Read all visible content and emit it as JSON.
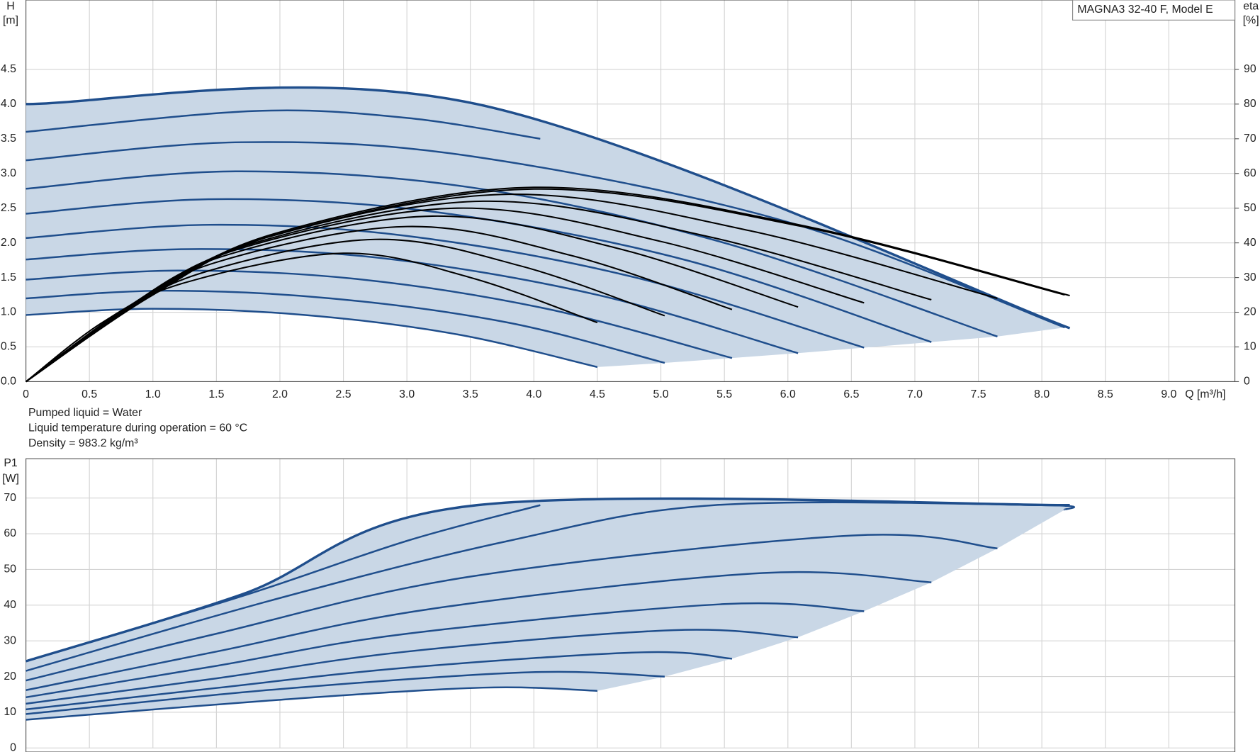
{
  "chart_data": [
    {
      "type": "line",
      "title": "MAGNA3 32-40 F, Model E",
      "ylabel": [
        "H",
        "[m]"
      ],
      "y2label": [
        "eta",
        "[%]"
      ],
      "xlabel": "Q [m³/h]",
      "notes": [
        "Pumped liquid = Water",
        "Liquid temperature during operation = 60 °C",
        "Density = 983.2 kg/m³"
      ],
      "grid": true,
      "shaded": true,
      "fill_color": "#c9d7e6",
      "xlim": [
        0,
        9.52
      ],
      "ylim": [
        0,
        5.5
      ],
      "y2lim": [
        0,
        110
      ],
      "xticks": [
        0,
        0.5,
        {
          "value": 1,
          "label": "1.0"
        },
        1.5,
        {
          "value": 2,
          "label": "2.0"
        },
        2.5,
        {
          "value": 3,
          "label": "3.0"
        },
        3.5,
        {
          "value": 4,
          "label": "4.0"
        },
        4.5,
        {
          "value": 5,
          "label": "5.0"
        },
        5.5,
        {
          "value": 6,
          "label": "6.0"
        },
        6.5,
        {
          "value": 7,
          "label": "7.0"
        },
        7.5,
        {
          "value": 8,
          "label": "8.0"
        },
        8.5,
        {
          "value": 9,
          "label": "9.0"
        }
      ],
      "yticks": [
        {
          "value": 0,
          "label": "0.0"
        },
        0.5,
        {
          "value": 1,
          "label": "1.0"
        },
        1.5,
        {
          "value": 2,
          "label": "2.0"
        },
        2.5,
        {
          "value": 3,
          "label": "3.0"
        },
        3.5,
        {
          "value": 4,
          "label": "4.0"
        },
        4.5
      ],
      "y2ticks": [
        0,
        10,
        20,
        30,
        40,
        50,
        60,
        70,
        80,
        90
      ],
      "series": [
        {
          "color": "#1f4e8c",
          "x": [
            0,
            3.55,
            8.22
          ],
          "values": [
            4,
            4,
            0.77
          ]
        },
        {
          "color": "#1f4e8c",
          "x": [
            0,
            1.8,
            3,
            4.05
          ],
          "values": [
            3.6,
            3.9,
            3.8,
            3.5
          ]
        },
        {
          "color": "#1f4e8c",
          "x": [
            0,
            1.7,
            3.5,
            6,
            8.18
          ],
          "values": [
            3.19,
            3.45,
            3.25,
            2.3,
            0.78
          ]
        },
        {
          "color": "#1f4e8c",
          "x": [
            0,
            1.65,
            3.5,
            5.5,
            7.65
          ],
          "values": [
            2.78,
            3.03,
            2.8,
            2.0,
            0.65
          ]
        },
        {
          "color": "#1f4e8c",
          "x": [
            0,
            1.5,
            3.2,
            5.2,
            7.13
          ],
          "values": [
            2.42,
            2.63,
            2.45,
            1.75,
            0.57
          ]
        },
        {
          "color": "#1f4e8c",
          "x": [
            0,
            1.45,
            3,
            4.8,
            6.6
          ],
          "values": [
            2.07,
            2.26,
            2.1,
            1.5,
            0.49
          ]
        },
        {
          "color": "#1f4e8c",
          "x": [
            0,
            1.3,
            2.8,
            4.5,
            6.08
          ],
          "values": [
            1.76,
            1.91,
            1.78,
            1.25,
            0.41
          ]
        },
        {
          "color": "#1f4e8c",
          "x": [
            0,
            1.2,
            2.6,
            4.1,
            5.56
          ],
          "values": [
            1.47,
            1.6,
            1.48,
            1.05,
            0.34
          ]
        },
        {
          "color": "#1f4e8c",
          "x": [
            0,
            1.1,
            2.4,
            3.8,
            5.03
          ],
          "values": [
            1.2,
            1.31,
            1.2,
            0.85,
            0.27
          ]
        },
        {
          "color": "#1f4e8c",
          "x": [
            0,
            1,
            2.2,
            3.4,
            4.5
          ],
          "values": [
            0.96,
            1.05,
            0.96,
            0.68,
            0.21
          ]
        },
        {
          "color": "#000000",
          "axis": "y2",
          "x": [
            0,
            0.6,
            1.25,
            2.5,
            3.5,
            4.5
          ],
          "values": [
            0,
            17,
            28.5,
            37,
            30,
            17
          ]
        },
        {
          "color": "#000000",
          "axis": "y2",
          "x": [
            0,
            0.7,
            1.4,
            2.75,
            3.9,
            5.03
          ],
          "values": [
            0,
            18.5,
            31.5,
            41,
            33.3,
            19
          ]
        },
        {
          "color": "#000000",
          "axis": "y2",
          "x": [
            0,
            0.75,
            1.5,
            3,
            4.3,
            5.56
          ],
          "values": [
            0,
            20,
            34.4,
            44.7,
            36.3,
            20.8
          ]
        },
        {
          "color": "#000000",
          "axis": "y2",
          "x": [
            0,
            0.8,
            1.6,
            3.2,
            4.65,
            6.08
          ],
          "values": [
            0,
            21.5,
            36.7,
            47.7,
            38.5,
            21.5
          ]
        },
        {
          "color": "#000000",
          "axis": "y2",
          "x": [
            0,
            0.85,
            1.7,
            3.4,
            5,
            6.6
          ],
          "values": [
            0,
            22.5,
            38.5,
            50,
            40.4,
            22.7
          ]
        },
        {
          "color": "#000000",
          "axis": "y2",
          "x": [
            0,
            0.9,
            1.8,
            3.6,
            5.35,
            7.13
          ],
          "values": [
            0,
            23.4,
            40,
            52,
            42,
            23.6
          ]
        },
        {
          "color": "#000000",
          "axis": "y2",
          "x": [
            0,
            0.95,
            1.9,
            3.8,
            5.7,
            7.65
          ],
          "values": [
            0,
            24.3,
            41.6,
            54,
            43.5,
            24
          ]
        },
        {
          "color": "#000000",
          "axis": "y2",
          "x": [
            0,
            1,
            2,
            4,
            6.1,
            8.18
          ],
          "values": [
            0,
            25,
            42.7,
            55.5,
            44.8,
            25
          ]
        },
        {
          "color": "#000000",
          "axis": "y2",
          "x": [
            0,
            1,
            2,
            4,
            6.1,
            8.22
          ],
          "values": [
            0,
            25.2,
            43.1,
            56,
            45.1,
            24.8
          ]
        }
      ]
    },
    {
      "type": "line",
      "ylabel": [
        "P1",
        "[W]"
      ],
      "grid": true,
      "shaded": true,
      "fill_color": "#c9d7e6",
      "xlim": [
        0,
        9.52
      ],
      "ylim": [
        0,
        81
      ],
      "yticks": [
        0,
        10,
        20,
        30,
        40,
        50,
        60,
        70
      ],
      "series": [
        {
          "color": "#1f4e8c",
          "x": [
            0,
            1.7,
            3.55,
            8.22
          ],
          "values": [
            24.3,
            43,
            68,
            68
          ]
        },
        {
          "color": "#1f4e8c",
          "x": [
            0,
            1.7,
            3,
            4.05
          ],
          "values": [
            24.3,
            42.5,
            58,
            68
          ]
        },
        {
          "color": "#1f4e8c",
          "x": [
            0,
            2,
            3.8,
            5.42,
            8,
            8.18
          ],
          "values": [
            21.6,
            42,
            58,
            68,
            68,
            66.7
          ]
        },
        {
          "color": "#1f4e8c",
          "x": [
            0,
            1.5,
            3.5,
            6.5,
            7.65
          ],
          "values": [
            18.9,
            32,
            48,
            59.5,
            55.9
          ]
        },
        {
          "color": "#1f4e8c",
          "x": [
            0,
            1.5,
            3.2,
            5.8,
            7.13
          ],
          "values": [
            16.2,
            27,
            39,
            49,
            46.4
          ]
        },
        {
          "color": "#1f4e8c",
          "x": [
            0,
            1.5,
            3,
            5.5,
            6.6
          ],
          "values": [
            14.2,
            23,
            32,
            40.3,
            38.3
          ]
        },
        {
          "color": "#1f4e8c",
          "x": [
            0,
            1.5,
            3,
            5.1,
            6.08
          ],
          "values": [
            12.4,
            19.5,
            27,
            33,
            31
          ]
        },
        {
          "color": "#1f4e8c",
          "x": [
            0,
            1.5,
            3,
            4.86,
            5.56
          ],
          "values": [
            10.8,
            16.8,
            22.5,
            26.8,
            25
          ]
        },
        {
          "color": "#1f4e8c",
          "x": [
            0,
            2,
            3.97,
            5.03
          ],
          "values": [
            9.5,
            16.5,
            21.2,
            20
          ]
        },
        {
          "color": "#1f4e8c",
          "x": [
            0,
            2,
            3.6,
            4.5
          ],
          "values": [
            7.9,
            13.5,
            16.9,
            16
          ]
        }
      ]
    }
  ]
}
